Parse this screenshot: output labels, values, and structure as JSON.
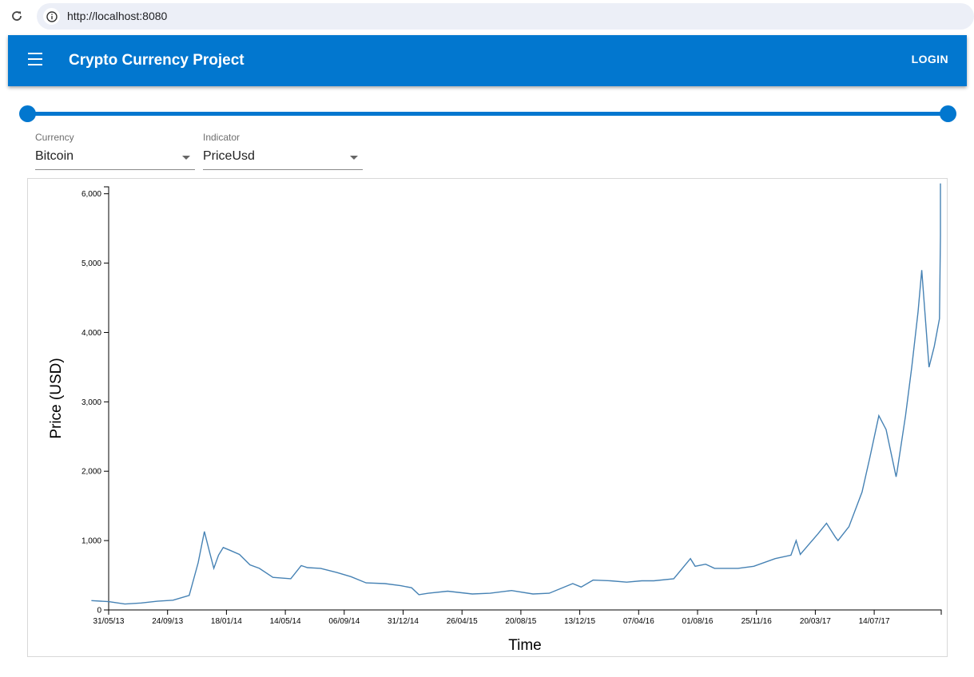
{
  "browser": {
    "url": "http://localhost:8080"
  },
  "app": {
    "title": "Crypto Currency Project",
    "login_label": "LOGIN",
    "accent_color": "#0277cf"
  },
  "slider": {
    "range_start_fraction": 0.0,
    "range_end_fraction": 1.0
  },
  "filters": {
    "currency": {
      "label": "Currency",
      "value": "Bitcoin"
    },
    "indicator": {
      "label": "Indicator",
      "value": "PriceUsd"
    }
  },
  "chart_data": {
    "type": "line",
    "xlabel": "Time",
    "ylabel": "Price (USD)",
    "ylim": [
      0,
      6100
    ],
    "y_ticks": [
      "0",
      "1,000",
      "2,000",
      "3,000",
      "4,000",
      "5,000",
      "6,000"
    ],
    "x_ticks": [
      "31/05/13",
      "24/09/13",
      "18/01/14",
      "14/05/14",
      "06/09/14",
      "31/12/14",
      "26/04/15",
      "20/08/15",
      "13/12/15",
      "07/04/16",
      "01/08/16",
      "25/11/16",
      "20/03/17",
      "14/07/17"
    ],
    "line_color": "#4682b4",
    "series": [
      {
        "x": [
          "2013-04-28",
          "2013-05-31",
          "2013-07-01",
          "2013-08-01",
          "2013-09-01",
          "2013-10-01",
          "2013-11-01",
          "2013-11-18",
          "2013-11-30",
          "2013-12-10",
          "2013-12-18",
          "2013-12-27",
          "2014-01-05",
          "2014-01-18",
          "2014-02-05",
          "2014-02-25",
          "2014-03-15",
          "2014-04-10",
          "2014-05-14",
          "2014-06-03",
          "2014-06-15",
          "2014-07-10",
          "2014-08-10",
          "2014-09-06",
          "2014-10-05",
          "2014-11-10",
          "2014-12-10",
          "2014-12-31",
          "2015-01-14",
          "2015-02-01",
          "2015-03-10",
          "2015-04-26",
          "2015-05-30",
          "2015-07-10",
          "2015-08-20",
          "2015-09-20",
          "2015-11-04",
          "2015-11-20",
          "2015-12-13",
          "2016-01-15",
          "2016-02-15",
          "2016-03-15",
          "2016-04-07",
          "2016-05-15",
          "2016-06-16",
          "2016-06-25",
          "2016-07-15",
          "2016-08-01",
          "2016-09-15",
          "2016-10-15",
          "2016-11-25",
          "2016-12-25",
          "2017-01-04",
          "2017-01-12",
          "2017-02-15",
          "2017-03-03",
          "2017-03-20",
          "2017-03-25",
          "2017-04-15",
          "2017-05-10",
          "2017-05-25",
          "2017-06-11",
          "2017-06-25",
          "2017-07-14",
          "2017-07-16",
          "2017-08-01",
          "2017-08-13",
          "2017-08-25",
          "2017-09-01",
          "2017-09-15",
          "2017-09-25",
          "2017-10-05",
          "2017-10-12",
          "2017-10-21",
          "2017-10-25",
          "2017-10-31"
        ],
        "y": [
          135,
          120,
          85,
          100,
          125,
          140,
          210,
          680,
          1130,
          830,
          600,
          790,
          900,
          860,
          800,
          650,
          600,
          470,
          450,
          640,
          610,
          600,
          540,
          480,
          390,
          380,
          350,
          320,
          220,
          240,
          270,
          230,
          240,
          280,
          230,
          240,
          380,
          330,
          430,
          420,
          400,
          420,
          420,
          450,
          740,
          630,
          660,
          600,
          600,
          630,
          740,
          790,
          1000,
          800,
          1100,
          1250,
          1050,
          1000,
          1200,
          1700,
          2200,
          2800,
          2600,
          1920,
          2000,
          2800,
          3500,
          4300,
          4900,
          3500,
          3800,
          4200,
          5400,
          5900,
          5600,
          6150
        ]
      }
    ]
  }
}
